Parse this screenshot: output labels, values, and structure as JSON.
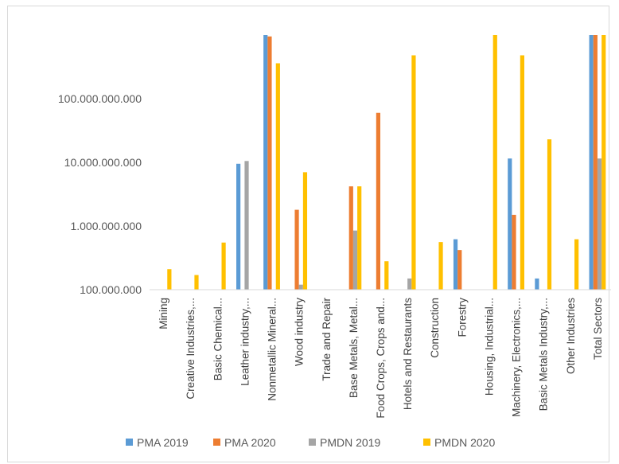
{
  "chart_data": {
    "type": "bar",
    "yscale": "log",
    "ylim": [
      100000000,
      1000000000000
    ],
    "yticks": [
      "100.000.000",
      "1.000.000.000",
      "10.000.000.000",
      "100.000.000.000"
    ],
    "ytick_values": [
      100000000,
      1000000000,
      10000000000,
      100000000000
    ],
    "grid": false,
    "legend_position": "bottom",
    "categories": [
      "Mining",
      "Creative Industries,...",
      "Basic Chemical...",
      "Leather industry,...",
      "Nonmetallic Mineral...",
      "Wood industry",
      "Trade and Repair",
      "Base Metals, Metal...",
      "Food Crops, Crops and...",
      "Hotels and Restaurants",
      "Construction",
      "Forestry",
      "Housing, Industrial...",
      "Machinery, Electronics,...",
      "Basic Metals Industry,...",
      "Other Industries",
      "Total Sectors"
    ],
    "series": [
      {
        "name": "PMA 2019",
        "color": "#5b9bd5",
        "values": [
          null,
          null,
          null,
          9500000000,
          1000000000000,
          null,
          null,
          null,
          null,
          null,
          null,
          620000000,
          null,
          11500000000,
          150000000,
          null,
          1000000000000
        ]
      },
      {
        "name": "PMA 2020",
        "color": "#ed7d31",
        "values": [
          null,
          null,
          null,
          null,
          950000000000,
          1800000000,
          null,
          4200000000,
          60000000000,
          null,
          null,
          420000000,
          null,
          1500000000,
          null,
          null,
          1000000000000
        ]
      },
      {
        "name": "PMDN 2019",
        "color": "#a5a5a5",
        "values": [
          null,
          null,
          null,
          10500000000,
          null,
          120000000,
          null,
          850000000,
          null,
          150000000,
          null,
          null,
          null,
          null,
          null,
          null,
          11500000000
        ]
      },
      {
        "name": "PMDN 2020",
        "color": "#ffc000",
        "values": [
          210000000,
          170000000,
          550000000,
          null,
          360000000000,
          7000000000,
          null,
          4200000000,
          280000000,
          480000000000,
          560000000,
          null,
          1000000000000,
          480000000000,
          23000000000,
          620000000,
          1000000000000
        ]
      }
    ]
  }
}
